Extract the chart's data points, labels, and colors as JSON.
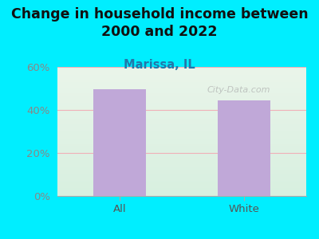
{
  "title": "Change in household income between\n2000 and 2022",
  "subtitle": "Marissa, IL",
  "categories": [
    "All",
    "White"
  ],
  "values": [
    49.5,
    44.5
  ],
  "bar_color": "#c0a8d8",
  "bar_width": 0.42,
  "ylim": [
    0,
    60
  ],
  "yticks": [
    0,
    20,
    40,
    60
  ],
  "ytick_labels": [
    "0%",
    "20%",
    "40%",
    "60%"
  ],
  "background_outer": "#00eeff",
  "grid_color": "#f0b0b8",
  "title_fontsize": 12.5,
  "subtitle_fontsize": 10.5,
  "tick_fontsize": 9.5,
  "ytick_color": "#888888",
  "xtick_color": "#555555",
  "watermark": "City-Data.com",
  "gradient_top": "#eaf5ea",
  "gradient_bottom": "#d8f0e0"
}
